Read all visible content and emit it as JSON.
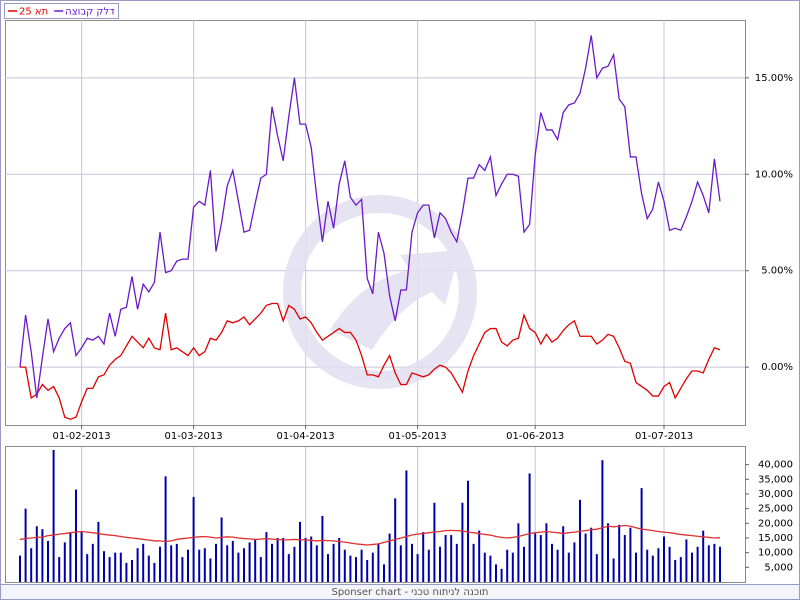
{
  "chart_data": [
    {
      "type": "line",
      "legend": "top-left",
      "grid": true,
      "categories": [
        null,
        null,
        null,
        null,
        null,
        null,
        null,
        null,
        null,
        null,
        null,
        "01-02-2013",
        null,
        null,
        null,
        null,
        null,
        null,
        null,
        null,
        null,
        null,
        null,
        null,
        null,
        null,
        null,
        null,
        null,
        null,
        null,
        "01-03-2013",
        null,
        null,
        null,
        null,
        null,
        null,
        null,
        null,
        null,
        null,
        null,
        null,
        null,
        null,
        null,
        null,
        null,
        null,
        null,
        "01-04-2013",
        null,
        null,
        null,
        null,
        null,
        null,
        null,
        null,
        null,
        null,
        null,
        null,
        null,
        null,
        null,
        null,
        null,
        null,
        null,
        "01-05-2013",
        null,
        null,
        null,
        null,
        null,
        null,
        null,
        null,
        null,
        null,
        null,
        null,
        null,
        null,
        null,
        null,
        null,
        null,
        null,
        null,
        "01-06-2013",
        null,
        null,
        null,
        null,
        null,
        null,
        null,
        null,
        null,
        null,
        null,
        null,
        null,
        null,
        null,
        null,
        null,
        null,
        null,
        null,
        null,
        null,
        "01-07-2013",
        null,
        null,
        null,
        null,
        null,
        null,
        null,
        null,
        null,
        null
      ],
      "ylim": [
        -3,
        18
      ],
      "yticks": [
        {
          "value": 0,
          "label": "0.00%"
        },
        {
          "value": 5,
          "label": "5.00%"
        },
        {
          "value": 10,
          "label": "10.00%"
        },
        {
          "value": 15,
          "label": "15.00%"
        }
      ],
      "series": [
        {
          "name": "תא 25",
          "color": "#e00000",
          "values": [
            0,
            0,
            -1.6,
            -1.4,
            -0.9,
            -1.2,
            -1.0,
            -1.6,
            -2.6,
            -2.7,
            -2.6,
            -1.8,
            -1.1,
            -1.1,
            -0.5,
            -0.4,
            0.1,
            0.4,
            0.6,
            1.1,
            1.6,
            1.3,
            1.0,
            1.5,
            1.0,
            0.9,
            2.8,
            0.9,
            1.0,
            0.8,
            0.6,
            1.0,
            0.6,
            0.8,
            1.5,
            1.4,
            1.8,
            2.4,
            2.3,
            2.4,
            2.6,
            2.2,
            2.5,
            2.8,
            3.2,
            3.3,
            3.3,
            2.4,
            3.2,
            3.0,
            2.5,
            2.6,
            2.3,
            1.8,
            1.4,
            1.6,
            1.8,
            2.0,
            1.8,
            1.8,
            1.4,
            0.6,
            -0.4,
            -0.4,
            -0.5,
            0.1,
            0.6,
            -0.3,
            -0.9,
            -0.9,
            -0.3,
            -0.4,
            -0.5,
            -0.4,
            -0.1,
            0.1,
            0.0,
            -0.3,
            -0.8,
            -1.3,
            -0.2,
            0.6,
            1.2,
            1.8,
            2.0,
            2.0,
            1.3,
            1.1,
            1.4,
            1.5,
            2.7,
            2.0,
            1.8,
            1.2,
            1.7,
            1.3,
            1.5,
            1.9,
            2.2,
            2.4,
            1.6,
            1.6,
            1.6,
            1.2,
            1.4,
            1.7,
            1.6,
            1.0,
            0.3,
            0.2,
            -0.8,
            -1.0,
            -1.2,
            -1.5,
            -1.5,
            -1.0,
            -0.8,
            -1.6,
            -1.1,
            -0.6,
            -0.2,
            -0.2,
            -0.3,
            0.4,
            1.0,
            0.9
          ]
        },
        {
          "name": "דלק קבוצה",
          "color": "#6a1bc8",
          "values": [
            0,
            2.7,
            0.8,
            -1.6,
            0.5,
            2.5,
            0.8,
            1.5,
            2.0,
            2.3,
            0.6,
            1.0,
            1.5,
            1.4,
            1.6,
            1.2,
            2.8,
            1.6,
            3.0,
            3.1,
            4.7,
            3.0,
            4.3,
            3.9,
            4.4,
            7.0,
            4.9,
            5.0,
            5.5,
            5.6,
            5.6,
            8.3,
            8.6,
            8.4,
            10.2,
            6.0,
            7.5,
            9.4,
            10.2,
            8.6,
            7.0,
            7.1,
            8.5,
            9.8,
            10.0,
            13.5,
            12.0,
            10.7,
            13.0,
            15.0,
            12.6,
            12.6,
            11.4,
            8.8,
            6.5,
            8.6,
            7.2,
            9.5,
            10.7,
            8.8,
            8.4,
            8.7,
            4.6,
            3.8,
            7.0,
            5.9,
            3.7,
            2.4,
            4.0,
            4.0,
            7.0,
            8.0,
            8.4,
            8.4,
            6.7,
            8.0,
            7.7,
            7.0,
            6.5,
            8.0,
            9.8,
            9.8,
            10.5,
            10.2,
            10.9,
            8.9,
            9.5,
            10.0,
            10.0,
            9.9,
            7.0,
            7.4,
            11.0,
            13.2,
            12.3,
            12.3,
            11.8,
            13.2,
            13.6,
            13.7,
            14.2,
            15.5,
            17.2,
            15.0,
            15.5,
            15.6,
            16.2,
            13.9,
            13.5,
            10.9,
            10.9,
            9.0,
            7.7,
            8.2,
            9.6,
            8.6,
            7.1,
            7.2,
            7.1,
            7.8,
            8.6,
            9.6,
            8.9,
            8.0,
            10.8,
            8.6
          ]
        }
      ]
    },
    {
      "type": "bar",
      "ylim": [
        0,
        46000
      ],
      "yticks": [
        {
          "value": 5000,
          "label": "5,000"
        },
        {
          "value": 10000,
          "label": "10,000"
        },
        {
          "value": 15000,
          "label": "15,000"
        },
        {
          "value": 20000,
          "label": "20,000"
        },
        {
          "value": 25000,
          "label": "25,000"
        },
        {
          "value": 30000,
          "label": "30,000"
        },
        {
          "value": 35000,
          "label": "35,000"
        },
        {
          "value": 40000,
          "label": "40,000"
        }
      ],
      "caption": "Sponser chart - תוכנה לניתוח טכני",
      "series": [
        {
          "type": "bar",
          "color": "#0000a8",
          "values": [
            9000,
            25000,
            11500,
            19000,
            18000,
            14000,
            45000,
            8500,
            13500,
            17000,
            31500,
            17000,
            9500,
            13000,
            20500,
            10500,
            8500,
            10000,
            10000,
            6500,
            7500,
            11500,
            13000,
            9000,
            6500,
            12000,
            36000,
            12500,
            13000,
            8500,
            11000,
            29000,
            11000,
            11500,
            8000,
            13000,
            22000,
            12500,
            14000,
            10000,
            11500,
            13500,
            14500,
            8500,
            17000,
            13000,
            15000,
            15000,
            9500,
            12000,
            20500,
            15000,
            15500,
            12500,
            22500,
            9500,
            13000,
            15000,
            11000,
            9000,
            8500,
            11000,
            7500,
            10000,
            13000,
            6000,
            16500,
            28500,
            12500,
            38000,
            13000,
            9500,
            17000,
            11000,
            27000,
            12000,
            16000,
            16000,
            13000,
            27000,
            34500,
            13000,
            17500,
            10000,
            9000,
            6000,
            4500,
            11000,
            10000,
            20000,
            12000,
            37000,
            16500,
            16000,
            20000,
            13000,
            11000,
            19000,
            10000,
            13500,
            28000,
            16500,
            18500,
            9500,
            41500,
            20000,
            8000,
            19500,
            16000,
            18500,
            10000,
            32000,
            11000,
            9000,
            11500,
            15500,
            12000,
            7500,
            8500,
            14500,
            10000,
            12000,
            17500,
            12500,
            13000,
            12000
          ]
        },
        {
          "type": "line",
          "color": "#e03030",
          "values": [
            14500,
            14800,
            15000,
            15200,
            15300,
            15800,
            16000,
            16300,
            16500,
            16800,
            17000,
            17200,
            17000,
            16800,
            16500,
            16200,
            16000,
            15800,
            15500,
            15200,
            15000,
            14800,
            14500,
            14300,
            14000,
            14000,
            13800,
            14000,
            14500,
            14800,
            15000,
            15200,
            15400,
            15500,
            15300,
            15000,
            15200,
            15400,
            15300,
            15000,
            14800,
            14700,
            14500,
            14600,
            14800,
            14600,
            14500,
            14300,
            14400,
            14500,
            14400,
            14300,
            14200,
            14000,
            14200,
            14100,
            14000,
            13800,
            13600,
            13300,
            13000,
            12800,
            12600,
            12800,
            13000,
            13500,
            14000,
            14500,
            15000,
            15500,
            16000,
            16300,
            16500,
            16800,
            17000,
            17200,
            17500,
            17600,
            17500,
            17400,
            17000,
            16800,
            16500,
            16200,
            16000,
            15500,
            15200,
            15000,
            15200,
            15500,
            16000,
            16500,
            16800,
            17000,
            17200,
            17000,
            16800,
            16500,
            16800,
            17000,
            17300,
            17500,
            17800,
            18000,
            18500,
            19000,
            18800,
            19000,
            19300,
            19000,
            18500,
            18000,
            17800,
            17500,
            17200,
            17000,
            16800,
            16500,
            16200,
            16000,
            15800,
            15600,
            15400,
            15200,
            15000,
            15100
          ]
        }
      ]
    }
  ]
}
